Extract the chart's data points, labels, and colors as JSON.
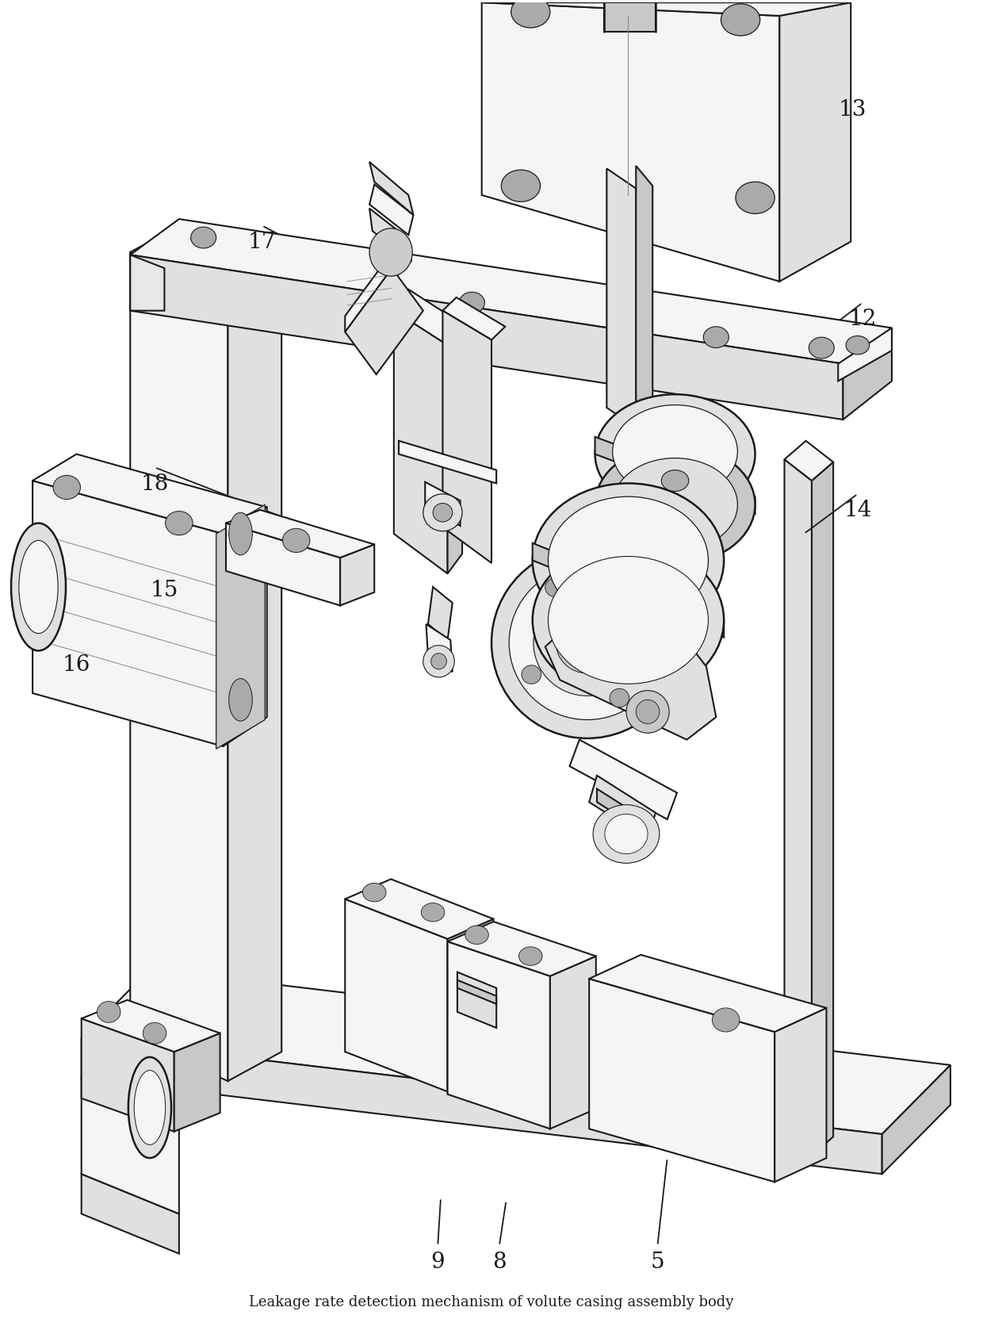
{
  "figure_width": 12.4,
  "figure_height": 16.83,
  "dpi": 100,
  "background_color": "#ffffff",
  "line_color": "#1a1a1a",
  "lw_main": 1.8,
  "lw_thin": 0.9,
  "face_light": "#f5f5f5",
  "face_mid": "#e0e0e0",
  "face_dark": "#c8c8c8",
  "face_darker": "#b0b0b0",
  "annotations": [
    {
      "label": "13",
      "xt": 0.87,
      "yt": 0.92,
      "xtip": 0.72,
      "ytip": 0.87
    },
    {
      "label": "17",
      "xt": 0.265,
      "yt": 0.82,
      "xtip": 0.375,
      "ytip": 0.79
    },
    {
      "label": "12",
      "xt": 0.88,
      "yt": 0.762,
      "xtip": 0.82,
      "ytip": 0.74
    },
    {
      "label": "18",
      "xt": 0.155,
      "yt": 0.638,
      "xtip": 0.33,
      "ytip": 0.6
    },
    {
      "label": "14",
      "xt": 0.875,
      "yt": 0.618,
      "xtip": 0.82,
      "ytip": 0.6
    },
    {
      "label": "15",
      "xt": 0.165,
      "yt": 0.558,
      "xtip": 0.265,
      "ytip": 0.54
    },
    {
      "label": "16",
      "xt": 0.075,
      "yt": 0.502,
      "xtip": 0.15,
      "ytip": 0.49
    },
    {
      "label": "9",
      "xt": 0.445,
      "yt": 0.052,
      "xtip": 0.448,
      "ytip": 0.1
    },
    {
      "label": "8",
      "xt": 0.508,
      "yt": 0.052,
      "xtip": 0.515,
      "ytip": 0.098
    },
    {
      "label": "5",
      "xt": 0.67,
      "yt": 0.052,
      "xtip": 0.68,
      "ytip": 0.13
    }
  ],
  "label_fontsize": 20,
  "title": "Leakage rate detection mechanism of volute casing assembly body",
  "title_fontsize": 13
}
